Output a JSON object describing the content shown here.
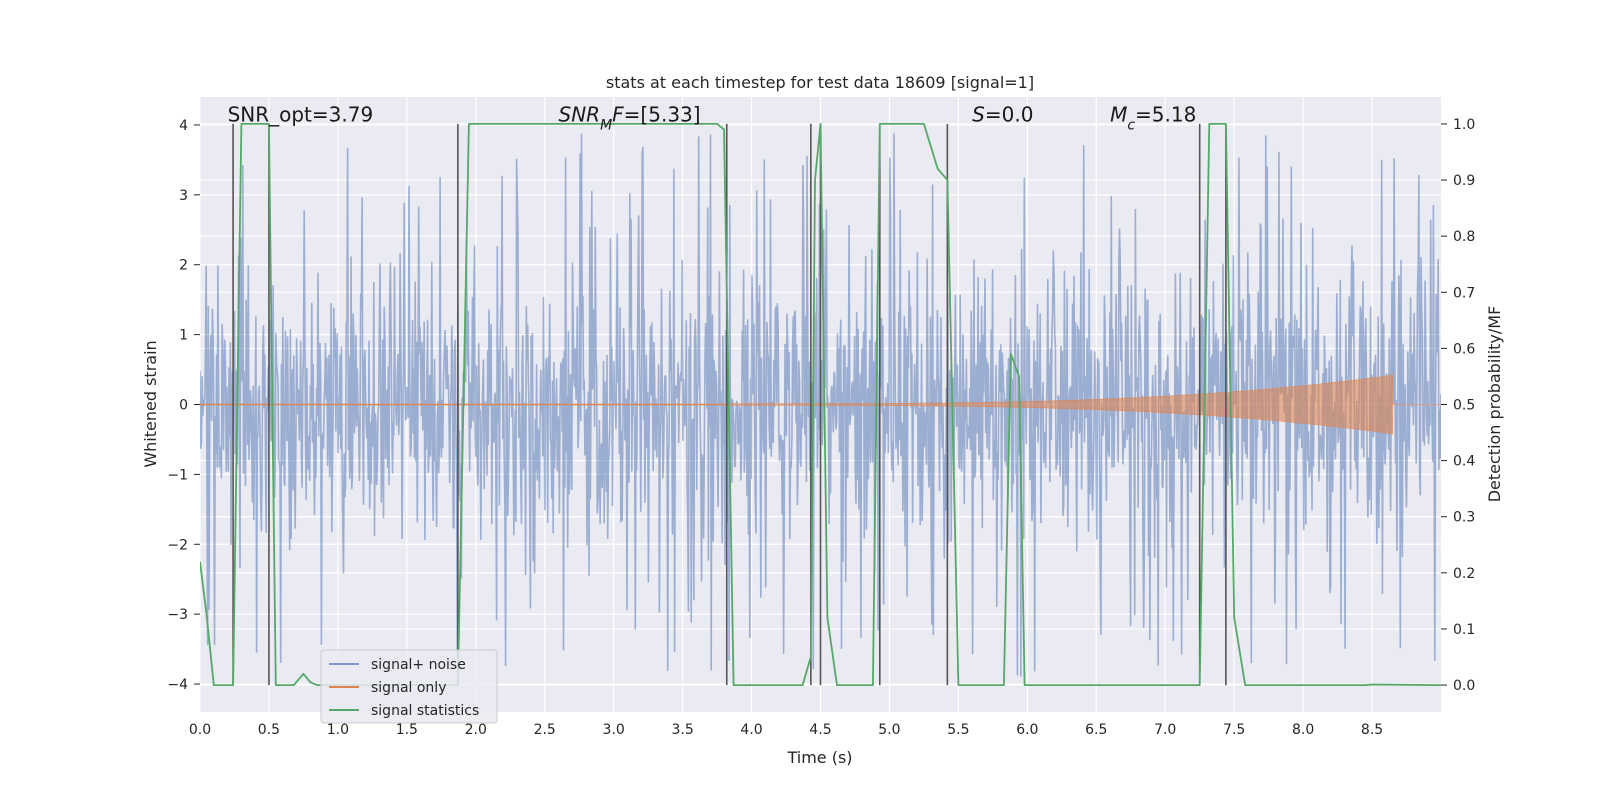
{
  "chart_data": {
    "type": "line",
    "title": "stats at each timestep for test data 18609 [signal=1]",
    "xlabel": "Time (s)",
    "ylabel": "Whitened strain",
    "ylabel_right": "Detection probability/MF",
    "xlim": [
      0,
      9
    ],
    "ylim": [
      -4.4,
      4.4
    ],
    "ylim_right": [
      -0.048,
      1.048
    ],
    "x_ticks": [
      "0.0",
      "0.5",
      "1.0",
      "1.5",
      "2.0",
      "2.5",
      "3.0",
      "3.5",
      "4.0",
      "4.5",
      "5.0",
      "5.5",
      "6.0",
      "6.5",
      "7.0",
      "7.5",
      "8.0",
      "8.5"
    ],
    "y_ticks": [
      "4",
      "3",
      "2",
      "1",
      "0",
      "−1",
      "−2",
      "−3",
      "−4"
    ],
    "y_ticks_right": [
      "1.0",
      "0.9",
      "0.8",
      "0.7",
      "0.6",
      "0.5",
      "0.4",
      "0.3",
      "0.2",
      "0.1",
      "0.0"
    ],
    "grid": true,
    "legend_position": "lower-left",
    "annotations": [
      {
        "text": "SNR_opt=3.79",
        "x": 0.2,
        "y": 4.05
      },
      {
        "text_parts": [
          {
            "t": "SNR",
            "it": true
          },
          {
            "t": "M",
            "it": true,
            "sub": true
          },
          {
            "t": "F",
            "it": true
          },
          {
            "t": "=[5.33]",
            "it": false
          }
        ],
        "x": 2.6,
        "y": 4.05
      },
      {
        "text_parts": [
          {
            "t": "S",
            "it": true
          },
          {
            "t": "=0.0",
            "it": false
          }
        ],
        "x": 5.6,
        "y": 4.05
      },
      {
        "text_parts": [
          {
            "t": "M",
            "it": true
          },
          {
            "t": "c",
            "it": true,
            "sub": true
          },
          {
            "t": "=5.18",
            "it": false
          }
        ],
        "x": 6.6,
        "y": 4.05
      }
    ],
    "vertical_lines": [
      0.24,
      0.5,
      1.87,
      3.82,
      4.43,
      4.5,
      4.93,
      5.42,
      7.25,
      7.44
    ],
    "series": [
      {
        "name": "signal+ noise",
        "axis": "left",
        "color": "#4c72b0",
        "opacity": 0.5,
        "noise": {
          "sigma": 0.95,
          "peak_range": [
            1.6,
            3.9
          ],
          "samples": 1800
        }
      },
      {
        "name": "signal only",
        "axis": "left",
        "color": "#dd8452",
        "envelope": {
          "t_start": 3.8,
          "t_end": 8.65,
          "amp_start": 0.01,
          "amp_end": 0.42
        }
      },
      {
        "name": "signal statistics",
        "axis": "right",
        "color": "#55a868",
        "points": [
          [
            0.0,
            0.22
          ],
          [
            0.05,
            0.12
          ],
          [
            0.1,
            0.0
          ],
          [
            0.24,
            0.0
          ],
          [
            0.3,
            1.0
          ],
          [
            0.5,
            1.0
          ],
          [
            0.55,
            0.0
          ],
          [
            0.68,
            0.0
          ],
          [
            0.75,
            0.02
          ],
          [
            0.8,
            0.005
          ],
          [
            0.85,
            0.0
          ],
          [
            1.87,
            0.0
          ],
          [
            1.95,
            1.0
          ],
          [
            3.75,
            1.0
          ],
          [
            3.8,
            0.99
          ],
          [
            3.87,
            0.0
          ],
          [
            3.95,
            0.0
          ],
          [
            4.37,
            0.0
          ],
          [
            4.43,
            0.05
          ],
          [
            4.46,
            0.9
          ],
          [
            4.5,
            1.0
          ],
          [
            4.55,
            0.12
          ],
          [
            4.62,
            0.0
          ],
          [
            4.88,
            0.0
          ],
          [
            4.93,
            1.0
          ],
          [
            5.25,
            1.0
          ],
          [
            5.35,
            0.92
          ],
          [
            5.42,
            0.9
          ],
          [
            5.5,
            0.0
          ],
          [
            5.83,
            0.0
          ],
          [
            5.88,
            0.59
          ],
          [
            5.94,
            0.55
          ],
          [
            5.98,
            0.0
          ],
          [
            7.25,
            0.0
          ],
          [
            7.32,
            1.0
          ],
          [
            7.44,
            1.0
          ],
          [
            7.5,
            0.12
          ],
          [
            7.58,
            0.0
          ],
          [
            8.45,
            0.0
          ],
          [
            8.5,
            0.001
          ],
          [
            9.0,
            0.0
          ]
        ]
      }
    ]
  }
}
